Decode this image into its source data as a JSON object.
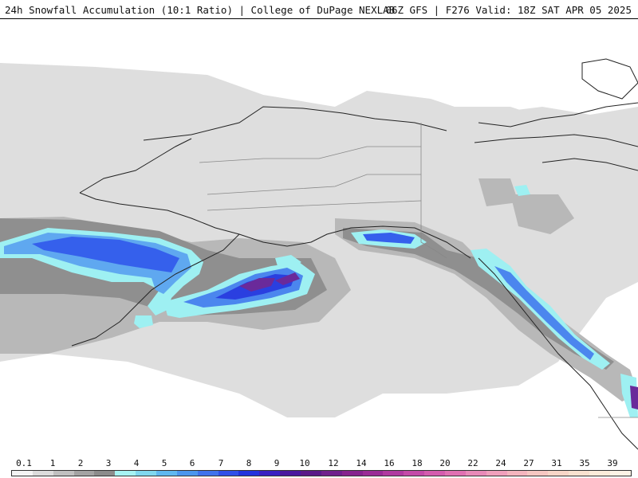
{
  "header": {
    "title": "24h Snowfall Accumulation (10:1 Ratio) | College of DuPage NEXLAB",
    "run_info": "06Z GFS | F276 Valid: 18Z SAT APR 05 2025"
  },
  "legend": {
    "labels": [
      "0.1",
      "1",
      "2",
      "3",
      "4",
      "5",
      "6",
      "7",
      "8",
      "9",
      "10",
      "12",
      "14",
      "16",
      "18",
      "20",
      "22",
      "24",
      "27",
      "31",
      "35",
      "39"
    ],
    "colors": [
      "#f4f4f4",
      "#dcdcdc",
      "#c0c0c0",
      "#a3a3a3",
      "#8c8c8c",
      "#a6f3f3",
      "#80d8ef",
      "#5fb8f0",
      "#4b96ee",
      "#3f72ec",
      "#2f4fe8",
      "#2233dd",
      "#3a1fc2",
      "#4a189e",
      "#5a1a88",
      "#70208c",
      "#86248e",
      "#9a2c96",
      "#b03aa0",
      "#c44aa8",
      "#d45cae",
      "#e070b2",
      "#e88ab8",
      "#f0a0bc",
      "#f4b5be",
      "#f6c7c2",
      "#f8d6c8",
      "#f9e2d0",
      "#fbecda",
      "#fdf3e6"
    ]
  }
}
